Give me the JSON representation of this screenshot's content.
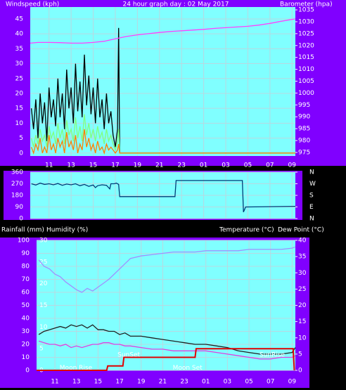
{
  "chart_data": [
    {
      "type": "line",
      "title": "24 hour graph day : 02 May 2017",
      "ylabel": "Windspeed (kph)",
      "y2label": "Barometer (hpa)",
      "xlim": [
        9.3,
        33.3
      ],
      "xticks": [
        11,
        13,
        15,
        17,
        19,
        21,
        23,
        {
          "value": 25,
          "label": "01"
        },
        {
          "value": 27,
          "label": "03"
        },
        {
          "value": 29,
          "label": "05"
        },
        {
          "value": 31,
          "label": "07"
        },
        {
          "value": 33,
          "label": "09"
        }
      ],
      "ylim": [
        -1,
        49
      ],
      "yticks": [
        0,
        5,
        10,
        15,
        20,
        25,
        30,
        35,
        40,
        45
      ],
      "y2lim": [
        973.5,
        1036.2
      ],
      "y2ticks": [
        975,
        980,
        985,
        990,
        995,
        1000,
        1005,
        1010,
        1015,
        1020,
        1025,
        1030,
        1035
      ],
      "grid": true,
      "x": [
        9.4,
        9.6,
        9.8,
        10,
        10.2,
        10.4,
        10.6,
        10.8,
        11,
        11.2,
        11.4,
        11.6,
        11.8,
        12,
        12.2,
        12.4,
        12.6,
        12.8,
        13,
        13.2,
        13.4,
        13.6,
        13.8,
        14,
        14.2,
        14.4,
        14.6,
        14.8,
        15,
        15.2,
        15.4,
        15.6,
        15.8,
        16,
        16.2,
        16.4,
        16.6,
        16.8,
        17,
        17.2,
        17.3,
        17.4,
        33.3
      ],
      "series": [
        {
          "color": "#000000",
          "values": [
            15,
            8,
            18,
            5,
            20,
            10,
            17,
            4,
            22,
            12,
            18,
            9,
            25,
            12,
            20,
            8,
            28,
            15,
            22,
            10,
            30,
            14,
            24,
            12,
            33,
            16,
            26,
            13,
            22,
            10,
            25,
            12,
            18,
            8,
            20,
            10,
            14,
            6,
            2,
            8,
            42,
            0,
            0
          ]
        },
        {
          "color": "#80ff80",
          "values": [
            5,
            2,
            6,
            3,
            8,
            4,
            6,
            2,
            9,
            5,
            7,
            3,
            10,
            5,
            8,
            3,
            11,
            6,
            8,
            4,
            12,
            5,
            9,
            4,
            13,
            6,
            10,
            5,
            8,
            4,
            9,
            5,
            7,
            3,
            8,
            4,
            6,
            3,
            1,
            4,
            8,
            0,
            0
          ]
        },
        {
          "color": "#ff8000",
          "values": [
            2,
            0,
            3,
            1,
            5,
            0,
            2,
            0,
            6,
            1,
            3,
            0,
            5,
            2,
            4,
            0,
            7,
            2,
            4,
            1,
            6,
            0,
            3,
            1,
            8,
            2,
            5,
            1,
            3,
            0,
            4,
            1,
            2,
            0,
            3,
            1,
            2,
            1,
            0,
            1,
            3,
            0,
            0
          ]
        },
        {
          "color": "#ff40ff",
          "axis": "y2",
          "x": [
            9.3,
            10,
            11,
            12,
            13,
            14,
            15,
            16,
            17,
            18,
            19,
            20,
            21,
            22,
            23,
            24,
            25,
            26,
            27,
            28,
            29,
            30,
            31,
            32,
            33,
            33.3
          ],
          "values": [
            1021,
            1021.3,
            1021.3,
            1021.2,
            1021,
            1021,
            1021.3,
            1021.8,
            1022.8,
            1023.8,
            1024.5,
            1025,
            1025.5,
            1025.9,
            1026.2,
            1026.5,
            1026.8,
            1027.2,
            1027.5,
            1027.8,
            1028.1,
            1028.6,
            1029.3,
            1030.2,
            1031,
            1031.2
          ]
        }
      ]
    },
    {
      "type": "line",
      "xlim": [
        9.3,
        33.3
      ],
      "xticks": [
        11,
        13,
        15,
        17,
        19,
        21,
        23,
        25,
        27,
        29,
        31,
        33
      ],
      "ylim": [
        0,
        360
      ],
      "yticks": [
        0,
        90,
        180,
        270,
        360
      ],
      "y2lim": [
        0,
        360
      ],
      "y2ticks": [
        {
          "value": 360,
          "label": "N"
        },
        {
          "value": 270,
          "label": "W"
        },
        {
          "value": 180,
          "label": "S"
        },
        {
          "value": 90,
          "label": "E"
        },
        {
          "value": 0,
          "label": "N"
        }
      ],
      "grid": true,
      "x": [
        9.4,
        9.8,
        10.2,
        10.6,
        11,
        11.4,
        11.8,
        12.2,
        12.6,
        13,
        13.4,
        13.8,
        14.2,
        14.6,
        15,
        15.2,
        15.4,
        15.8,
        16.2,
        16.5,
        16.6,
        16.9,
        17.1,
        17.3,
        17.4,
        22.4,
        22.5,
        28.5,
        28.6,
        28.8,
        29,
        33.3
      ],
      "series": [
        {
          "color": "#003c78",
          "values": [
            270,
            260,
            275,
            265,
            270,
            262,
            272,
            258,
            268,
            262,
            270,
            255,
            265,
            250,
            260,
            240,
            255,
            262,
            258,
            230,
            270,
            270,
            275,
            265,
            170,
            170,
            295,
            295,
            50,
            90,
            90,
            95
          ]
        }
      ]
    },
    {
      "type": "line",
      "y3label": "Rainfall (mm)",
      "ylabel": "Humidity (%)",
      "y2labels": [
        "Temperature (°C)",
        "Dew Point (°C)"
      ],
      "xlim": [
        9.3,
        33.3
      ],
      "xticks": [
        11,
        13,
        15,
        17,
        19,
        21,
        23,
        {
          "value": 25,
          "label": "01"
        },
        {
          "value": 27,
          "label": "03"
        },
        {
          "value": 29,
          "label": "05"
        },
        {
          "value": 31,
          "label": "07"
        },
        {
          "value": 33,
          "label": "09"
        }
      ],
      "ylim": [
        0,
        100
      ],
      "yticks": [
        0,
        10,
        20,
        30,
        40,
        50,
        60,
        70,
        80,
        90,
        100
      ],
      "y2lim": [
        0,
        40
      ],
      "y2ticks": [
        0,
        5,
        10,
        15,
        20,
        25,
        30,
        35,
        40
      ],
      "y3lim": [
        0,
        30
      ],
      "y3ticks": [
        0,
        5,
        10,
        15,
        20,
        25,
        30
      ],
      "y3color": "#ff0000",
      "grid": true,
      "x": [
        9.5,
        10,
        10.5,
        11,
        11.5,
        12,
        12.5,
        13,
        13.5,
        14,
        14.5,
        15,
        15.5,
        16,
        16.5,
        17,
        17.5,
        18,
        19,
        20,
        21,
        22,
        23,
        24,
        25,
        26,
        27,
        28,
        29,
        30,
        31,
        32,
        33,
        33.3
      ],
      "series": [
        {
          "color": "#a090ff",
          "values": [
            85,
            80,
            78,
            74,
            72,
            68,
            65,
            62,
            60,
            63,
            61,
            64,
            67,
            70,
            74,
            78,
            82,
            86,
            88,
            89,
            90,
            91,
            91,
            91,
            92,
            92,
            92,
            92,
            93,
            93,
            93,
            93,
            94,
            95
          ]
        },
        {
          "color": "#202020",
          "axis": "y2",
          "values": [
            11,
            12,
            12.5,
            13,
            13.5,
            13,
            14,
            13.5,
            14,
            13,
            14,
            12.5,
            12.5,
            12,
            12,
            11,
            11.5,
            10.5,
            10.5,
            10,
            9.5,
            9,
            8.5,
            8,
            8,
            7.5,
            7,
            6,
            5.5,
            5,
            5,
            5,
            5.5,
            7
          ]
        },
        {
          "color": "#e040e0",
          "axis": "y2",
          "values": [
            9,
            8.5,
            8,
            8,
            7.5,
            8,
            7,
            7.5,
            7,
            7.5,
            8,
            8,
            8.5,
            8.5,
            8,
            8,
            7.5,
            7.5,
            7,
            6.5,
            6.5,
            6,
            6,
            6,
            6,
            5.5,
            5,
            4.5,
            4,
            3.5,
            3.5,
            4,
            4,
            4.5
          ]
        },
        {
          "color": "#e00000",
          "axis": "y3",
          "x": [
            9.3,
            15.8,
            15.9,
            17.3,
            17.4,
            24,
            24.1,
            33.1,
            33.2
          ],
          "values": [
            0,
            0,
            1,
            1,
            3,
            3,
            5,
            5,
            0
          ]
        }
      ],
      "annotations": [
        {
          "text": "SunSet",
          "x": 17.85,
          "y": 12
        },
        {
          "text": "Moon Rise",
          "x": 12.95,
          "y": 2
        },
        {
          "text": "Moon Set",
          "x": 23.3,
          "y": 2
        },
        {
          "text": "SunRise",
          "x": 31.15,
          "y": 12
        }
      ]
    }
  ]
}
